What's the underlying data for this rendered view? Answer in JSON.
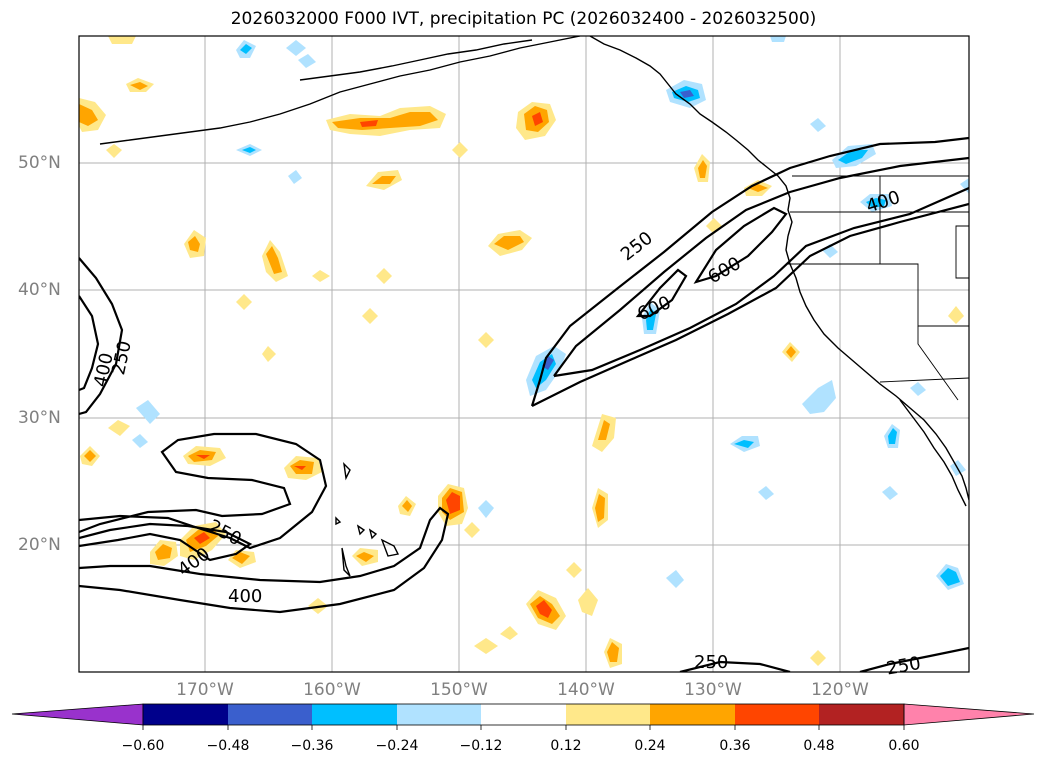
{
  "title": "2026032000 F000 IVT, precipitation PC (2026032400 - 2026032500)",
  "map": {
    "lat_labels": [
      "50°N",
      "40°N",
      "30°N",
      "20°N"
    ],
    "lon_labels": [
      "170°W",
      "160°W",
      "150°W",
      "140°W",
      "130°W",
      "120°W"
    ],
    "contour_labels": [
      "250",
      "400",
      "600",
      "600",
      "400",
      "250",
      "400",
      "250",
      "400",
      "250",
      "250"
    ]
  },
  "colorbar": {
    "ticks": [
      "−0.60",
      "−0.48",
      "−0.36",
      "−0.24",
      "−0.12",
      "0.12",
      "0.24",
      "0.36",
      "0.48",
      "0.60"
    ],
    "colors": [
      "#9932cc",
      "#00008b",
      "#3a5fcd",
      "#00bfff",
      "#b0e2ff",
      "#ffffff",
      "#ffe88a",
      "#ffa500",
      "#ff4500",
      "#b22222",
      "#ff82ab"
    ]
  }
}
